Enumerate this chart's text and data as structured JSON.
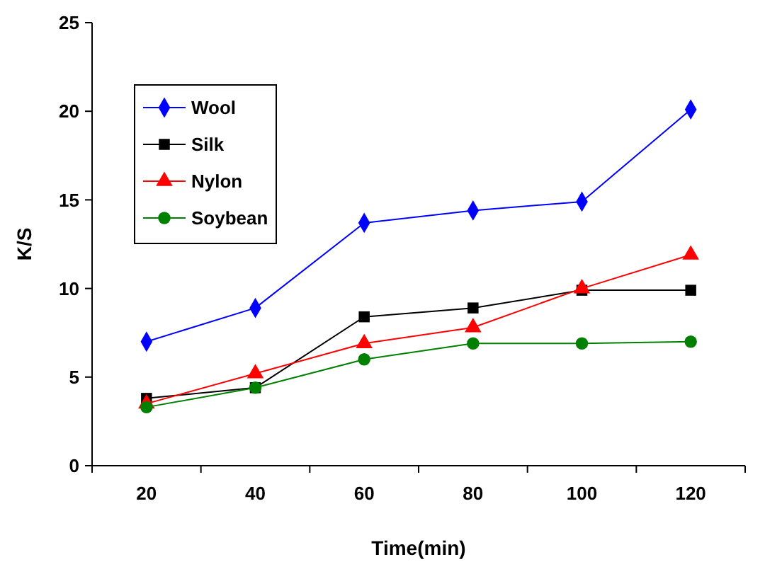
{
  "chart_data": {
    "type": "line",
    "xlabel": "Time(min)",
    "ylabel": "K/S",
    "categories": [
      "20",
      "40",
      "60",
      "80",
      "100",
      "120"
    ],
    "series": [
      {
        "name": "Wool",
        "color": "#0000ff",
        "marker": "diamond",
        "values": [
          7.0,
          8.9,
          13.7,
          14.4,
          14.9,
          20.1
        ]
      },
      {
        "name": "Silk",
        "color": "#000000",
        "marker": "square",
        "values": [
          3.8,
          4.4,
          8.4,
          8.9,
          9.9,
          9.9
        ]
      },
      {
        "name": "Nylon",
        "color": "#ff0000",
        "marker": "triangle",
        "values": [
          3.5,
          5.2,
          6.9,
          7.8,
          10,
          11.9
        ]
      },
      {
        "name": "Soybean",
        "color": "#008000",
        "marker": "circle",
        "values": [
          3.3,
          4.4,
          6.0,
          6.9,
          6.9,
          7.0
        ]
      }
    ],
    "ylim": [
      0,
      25
    ],
    "yticks": [
      0,
      5,
      10,
      15,
      20,
      25
    ],
    "grid": false,
    "legend": "top left"
  }
}
